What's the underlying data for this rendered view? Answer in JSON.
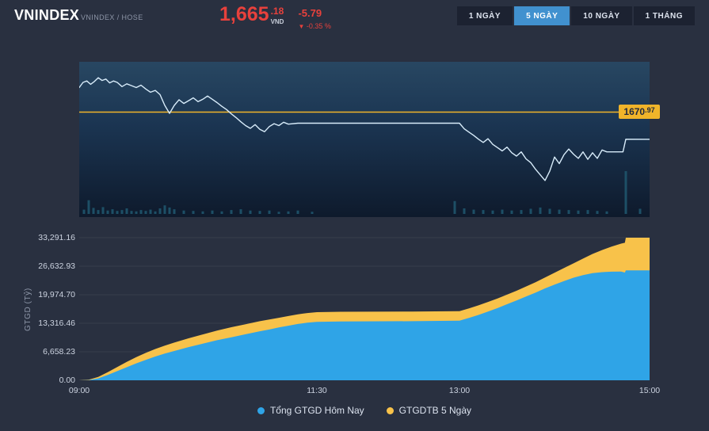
{
  "header": {
    "symbol": "VNINDEX",
    "subtitle": "VNINDEX / HOSE",
    "price_int": "1,665",
    "price_dec": ".18",
    "currency": "VND",
    "change": "-5.79",
    "arrow": "▼",
    "change_pct": "-0.35 %",
    "ranges": [
      {
        "label": "1 NGÀY",
        "active": false
      },
      {
        "label": "5 NGÀY",
        "active": true
      },
      {
        "label": "10 NGÀY",
        "active": false
      },
      {
        "label": "1 THÁNG",
        "active": false
      }
    ]
  },
  "colors": {
    "background": "#293040",
    "accent_red": "#e8413c",
    "active_tab_blue": "#4191cf",
    "price_line": "#d8ecfa",
    "ref_line_yellow": "#f0b42a",
    "volume_bar": "#1d4f66",
    "gridline": "rgba(255,255,255,0.07)",
    "area_blue": "#2fa4e7",
    "area_yellow": "#f8c24a"
  },
  "chart_data": [
    {
      "type": "line",
      "name": "VNINDEX intraday price",
      "xlim": [
        9,
        15
      ],
      "ylim": [
        1654,
        1680
      ],
      "ref_line": {
        "value": 1670.97,
        "label_int": "1670",
        "label_dec": ".97",
        "color": "#f0b42a"
      },
      "points": [
        [
          9.0,
          1676.2
        ],
        [
          9.04,
          1677.3
        ],
        [
          9.08,
          1677.6
        ],
        [
          9.12,
          1676.9
        ],
        [
          9.16,
          1677.5
        ],
        [
          9.2,
          1678.3
        ],
        [
          9.24,
          1677.7
        ],
        [
          9.28,
          1678.0
        ],
        [
          9.32,
          1677.2
        ],
        [
          9.36,
          1677.6
        ],
        [
          9.4,
          1677.3
        ],
        [
          9.45,
          1676.4
        ],
        [
          9.5,
          1677.0
        ],
        [
          9.55,
          1676.6
        ],
        [
          9.6,
          1676.2
        ],
        [
          9.65,
          1676.7
        ],
        [
          9.7,
          1675.9
        ],
        [
          9.75,
          1675.2
        ],
        [
          9.8,
          1675.6
        ],
        [
          9.85,
          1674.7
        ],
        [
          9.9,
          1672.4
        ],
        [
          9.95,
          1670.7
        ],
        [
          10.0,
          1672.4
        ],
        [
          10.05,
          1673.6
        ],
        [
          10.1,
          1672.8
        ],
        [
          10.15,
          1673.4
        ],
        [
          10.2,
          1674.0
        ],
        [
          10.25,
          1673.2
        ],
        [
          10.3,
          1673.7
        ],
        [
          10.35,
          1674.4
        ],
        [
          10.4,
          1673.7
        ],
        [
          10.45,
          1673.0
        ],
        [
          10.5,
          1672.2
        ],
        [
          10.55,
          1671.5
        ],
        [
          10.6,
          1670.6
        ],
        [
          10.65,
          1669.8
        ],
        [
          10.7,
          1668.9
        ],
        [
          10.75,
          1668.1
        ],
        [
          10.8,
          1667.5
        ],
        [
          10.85,
          1668.3
        ],
        [
          10.9,
          1667.3
        ],
        [
          10.95,
          1666.8
        ],
        [
          11.0,
          1667.9
        ],
        [
          11.05,
          1668.5
        ],
        [
          11.1,
          1668.1
        ],
        [
          11.15,
          1668.8
        ],
        [
          11.2,
          1668.4
        ],
        [
          11.3,
          1668.6
        ],
        [
          11.5,
          1668.6
        ],
        [
          13.0,
          1668.6
        ],
        [
          13.05,
          1667.4
        ],
        [
          13.1,
          1666.7
        ],
        [
          13.15,
          1666.0
        ],
        [
          13.2,
          1665.2
        ],
        [
          13.25,
          1664.5
        ],
        [
          13.3,
          1665.3
        ],
        [
          13.35,
          1664.1
        ],
        [
          13.4,
          1663.4
        ],
        [
          13.45,
          1662.7
        ],
        [
          13.5,
          1663.5
        ],
        [
          13.55,
          1662.3
        ],
        [
          13.6,
          1661.6
        ],
        [
          13.65,
          1662.5
        ],
        [
          13.7,
          1661.0
        ],
        [
          13.75,
          1660.2
        ],
        [
          13.8,
          1658.8
        ],
        [
          13.85,
          1657.6
        ],
        [
          13.9,
          1656.4
        ],
        [
          13.95,
          1658.4
        ],
        [
          14.0,
          1661.4
        ],
        [
          14.05,
          1660.0
        ],
        [
          14.1,
          1661.9
        ],
        [
          14.15,
          1663.1
        ],
        [
          14.2,
          1662.0
        ],
        [
          14.25,
          1661.1
        ],
        [
          14.3,
          1662.5
        ],
        [
          14.35,
          1660.9
        ],
        [
          14.4,
          1662.3
        ],
        [
          14.45,
          1661.1
        ],
        [
          14.5,
          1662.9
        ],
        [
          14.55,
          1662.5
        ],
        [
          14.6,
          1662.5
        ],
        [
          14.72,
          1662.5
        ],
        [
          14.75,
          1665.2
        ],
        [
          15.0,
          1665.18
        ]
      ],
      "volume": [
        [
          9.05,
          0.1
        ],
        [
          9.1,
          0.32
        ],
        [
          9.15,
          0.14
        ],
        [
          9.2,
          0.09
        ],
        [
          9.25,
          0.16
        ],
        [
          9.3,
          0.08
        ],
        [
          9.35,
          0.11
        ],
        [
          9.4,
          0.07
        ],
        [
          9.45,
          0.09
        ],
        [
          9.5,
          0.13
        ],
        [
          9.55,
          0.07
        ],
        [
          9.6,
          0.06
        ],
        [
          9.65,
          0.09
        ],
        [
          9.7,
          0.07
        ],
        [
          9.75,
          0.1
        ],
        [
          9.8,
          0.06
        ],
        [
          9.85,
          0.13
        ],
        [
          9.9,
          0.2
        ],
        [
          9.95,
          0.15
        ],
        [
          10.0,
          0.11
        ],
        [
          10.1,
          0.08
        ],
        [
          10.2,
          0.07
        ],
        [
          10.3,
          0.06
        ],
        [
          10.4,
          0.08
        ],
        [
          10.5,
          0.06
        ],
        [
          10.6,
          0.09
        ],
        [
          10.7,
          0.11
        ],
        [
          10.8,
          0.08
        ],
        [
          10.9,
          0.07
        ],
        [
          11.0,
          0.08
        ],
        [
          11.1,
          0.05
        ],
        [
          11.2,
          0.06
        ],
        [
          11.3,
          0.08
        ],
        [
          11.45,
          0.05
        ],
        [
          12.95,
          0.3
        ],
        [
          13.05,
          0.13
        ],
        [
          13.15,
          0.1
        ],
        [
          13.25,
          0.09
        ],
        [
          13.35,
          0.08
        ],
        [
          13.45,
          0.1
        ],
        [
          13.55,
          0.08
        ],
        [
          13.65,
          0.09
        ],
        [
          13.75,
          0.12
        ],
        [
          13.85,
          0.15
        ],
        [
          13.95,
          0.12
        ],
        [
          14.05,
          0.1
        ],
        [
          14.15,
          0.09
        ],
        [
          14.25,
          0.08
        ],
        [
          14.35,
          0.09
        ],
        [
          14.45,
          0.07
        ],
        [
          14.55,
          0.06
        ],
        [
          14.75,
          1.0
        ],
        [
          14.9,
          0.12
        ]
      ]
    },
    {
      "type": "area",
      "name": "Cumulative traded value",
      "ylabel": "GTGD (Tỷ)",
      "xlim": [
        9,
        15
      ],
      "ylim": [
        0,
        33291.16
      ],
      "yticks": [
        0,
        6658.23,
        13316.46,
        19974.7,
        26632.93,
        33291.16
      ],
      "ytick_labels": [
        "0.00",
        "6,658.23",
        "13,316.46",
        "19,974.70",
        "26,632.93",
        "33,291.16"
      ],
      "xticks": [
        9,
        11.5,
        13,
        15
      ],
      "xtick_labels": [
        "09:00",
        "11:30",
        "13:00",
        "15:00"
      ],
      "series": [
        {
          "name": "GTGDTB 5 Ngày",
          "color": "#f8c24a",
          "points": [
            [
              9.0,
              0
            ],
            [
              9.1,
              150
            ],
            [
              9.2,
              800
            ],
            [
              9.3,
              1900
            ],
            [
              9.4,
              3100
            ],
            [
              9.5,
              4300
            ],
            [
              9.6,
              5400
            ],
            [
              9.7,
              6400
            ],
            [
              9.8,
              7300
            ],
            [
              9.9,
              8100
            ],
            [
              10.0,
              8800
            ],
            [
              10.15,
              9800
            ],
            [
              10.3,
              10700
            ],
            [
              10.45,
              11600
            ],
            [
              10.6,
              12400
            ],
            [
              10.75,
              13100
            ],
            [
              10.9,
              13800
            ],
            [
              11.0,
              14200
            ],
            [
              11.1,
              14600
            ],
            [
              11.2,
              15000
            ],
            [
              11.3,
              15400
            ],
            [
              11.4,
              15700
            ],
            [
              11.5,
              15900
            ],
            [
              11.75,
              16000
            ],
            [
              12.5,
              16050
            ],
            [
              13.0,
              16150
            ],
            [
              13.1,
              16800
            ],
            [
              13.2,
              17500
            ],
            [
              13.3,
              18300
            ],
            [
              13.4,
              19100
            ],
            [
              13.5,
              20000
            ],
            [
              13.6,
              20900
            ],
            [
              13.7,
              21900
            ],
            [
              13.8,
              22900
            ],
            [
              13.9,
              24000
            ],
            [
              14.0,
              25100
            ],
            [
              14.1,
              26200
            ],
            [
              14.2,
              27300
            ],
            [
              14.3,
              28400
            ],
            [
              14.4,
              29500
            ],
            [
              14.5,
              30400
            ],
            [
              14.6,
              31200
            ],
            [
              14.7,
              31900
            ],
            [
              14.74,
              32100
            ],
            [
              14.75,
              33291.16
            ],
            [
              15.0,
              33291.16
            ]
          ]
        },
        {
          "name": "Tổng GTGD Hôm Nay",
          "color": "#2fa4e7",
          "points": [
            [
              9.0,
              0
            ],
            [
              9.1,
              60
            ],
            [
              9.2,
              450
            ],
            [
              9.3,
              1250
            ],
            [
              9.4,
              2150
            ],
            [
              9.5,
              3050
            ],
            [
              9.6,
              3950
            ],
            [
              9.7,
              4750
            ],
            [
              9.8,
              5550
            ],
            [
              9.9,
              6250
            ],
            [
              10.0,
              6850
            ],
            [
              10.15,
              7750
            ],
            [
              10.3,
              8550
            ],
            [
              10.45,
              9350
            ],
            [
              10.6,
              10050
            ],
            [
              10.75,
              10750
            ],
            [
              10.9,
              11450
            ],
            [
              11.0,
              11850
            ],
            [
              11.1,
              12350
            ],
            [
              11.2,
              12750
            ],
            [
              11.3,
              13150
            ],
            [
              11.4,
              13450
            ],
            [
              11.5,
              13650
            ],
            [
              11.75,
              13750
            ],
            [
              12.5,
              13800
            ],
            [
              13.0,
              13900
            ],
            [
              13.1,
              14550
            ],
            [
              13.2,
              15250
            ],
            [
              13.3,
              16050
            ],
            [
              13.4,
              16850
            ],
            [
              13.5,
              17750
            ],
            [
              13.6,
              18650
            ],
            [
              13.7,
              19550
            ],
            [
              13.8,
              20450
            ],
            [
              13.9,
              21450
            ],
            [
              14.0,
              22350
            ],
            [
              14.1,
              23150
            ],
            [
              14.2,
              23950
            ],
            [
              14.3,
              24550
            ],
            [
              14.4,
              25000
            ],
            [
              14.5,
              25250
            ],
            [
              14.6,
              25350
            ],
            [
              14.7,
              25400
            ],
            [
              14.74,
              25150
            ],
            [
              14.75,
              25650
            ],
            [
              15.0,
              25650
            ]
          ]
        }
      ],
      "legend": [
        {
          "label": "Tổng GTGD Hôm Nay",
          "color": "#2fa4e7"
        },
        {
          "label": "GTGDTB 5 Ngày",
          "color": "#f8c24a"
        }
      ]
    }
  ]
}
